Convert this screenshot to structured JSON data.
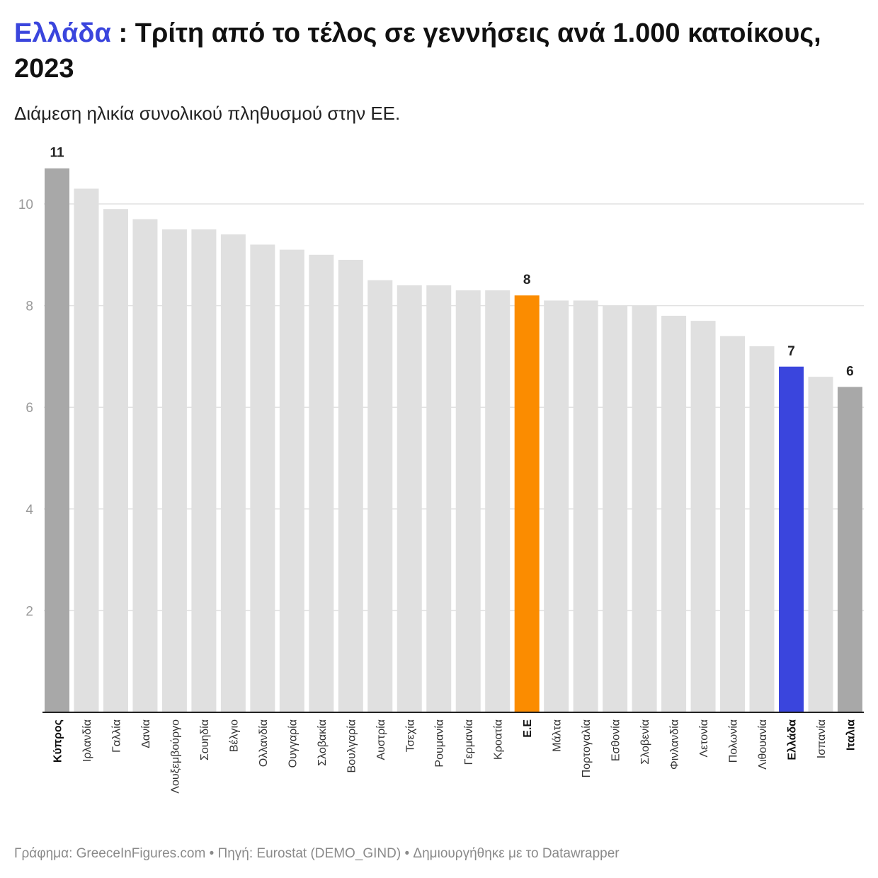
{
  "title": {
    "highlight": "Ελλάδα",
    "rest": " : Τρίτη από το τέλος σε γεννήσεις ανά 1.000 κατοίκους, 2023"
  },
  "subtitle": "Διάμεση ηλικία συνολικού πληθυσμού στην ΕΕ.",
  "footer": "Γράφημα: GreeceInFigures.com • Πηγή: Eurostat (DEMO_GIND) • Δημιουργήθηκε με το Datawrapper",
  "chart_data": {
    "type": "bar",
    "title": "Ελλάδα : Τρίτη από το τέλος σε γεννήσεις ανά 1.000 κατοίκους, 2023",
    "xlabel": "",
    "ylabel": "",
    "ylim": [
      0,
      10.7
    ],
    "yticks": [
      2,
      4,
      6,
      8,
      10
    ],
    "grid": true,
    "categories": [
      "Κύπρος",
      "Ιρλανδία",
      "Γαλλία",
      "Δανία",
      "Λουξεμβούργο",
      "Σουηδία",
      "Βέλγιο",
      "Ολλανδία",
      "Ουγγαρία",
      "Σλοβακία",
      "Βουλγαρία",
      "Αυστρία",
      "Τσεχία",
      "Ρουμανία",
      "Γερμανία",
      "Κροατία",
      "Ε.Ε",
      "Μάλτα",
      "Πορτογαλία",
      "Εσθονία",
      "Σλοβενία",
      "Φινλανδία",
      "Λετονία",
      "Πολωνία",
      "Λιθουανία",
      "Ελλάδα",
      "Ισπανία",
      "Ιταλια"
    ],
    "values": [
      10.7,
      10.3,
      9.9,
      9.7,
      9.5,
      9.5,
      9.4,
      9.2,
      9.1,
      9.0,
      8.9,
      8.5,
      8.4,
      8.4,
      8.3,
      8.3,
      8.2,
      8.1,
      8.1,
      8.0,
      8.0,
      7.8,
      7.7,
      7.4,
      7.2,
      6.8,
      6.6,
      6.4
    ],
    "data_labels": {
      "Κύπρος": "11",
      "Ε.Ε": "8",
      "Ελλάδα": "7",
      "Ιταλια": "6"
    },
    "bold_labels": [
      "Κύπρος",
      "Ε.Ε",
      "Ελλάδα",
      "Ιταλια"
    ],
    "colors": {
      "default": "#e0e0e0",
      "Κύπρος": "#a8a8a8",
      "Ιταλια": "#a8a8a8",
      "Ε.Ε": "#fb8c00",
      "Ελλάδα": "#3a45dd"
    }
  }
}
